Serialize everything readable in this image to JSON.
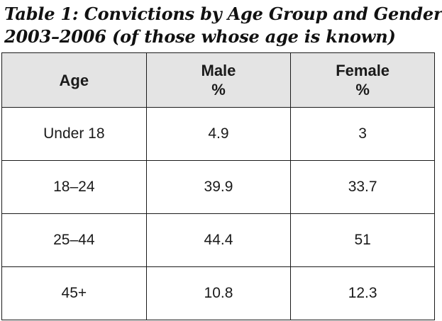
{
  "chart_data": {
    "type": "table",
    "title_lines": [
      "Table 1: Convictions by Age Group and Gender",
      "2003–2006 (of those whose age is known)"
    ],
    "columns": [
      {
        "label": "Age",
        "unit": ""
      },
      {
        "label": "Male",
        "unit": "%"
      },
      {
        "label": "Female",
        "unit": "%"
      }
    ],
    "rows": [
      {
        "age": "Under 18",
        "male": "4.9",
        "female": "3"
      },
      {
        "age": "18–24",
        "male": "39.9",
        "female": "33.7"
      },
      {
        "age": "25–44",
        "male": "44.4",
        "female": "51"
      },
      {
        "age": "45+",
        "male": "10.8",
        "female": "12.3"
      }
    ]
  }
}
